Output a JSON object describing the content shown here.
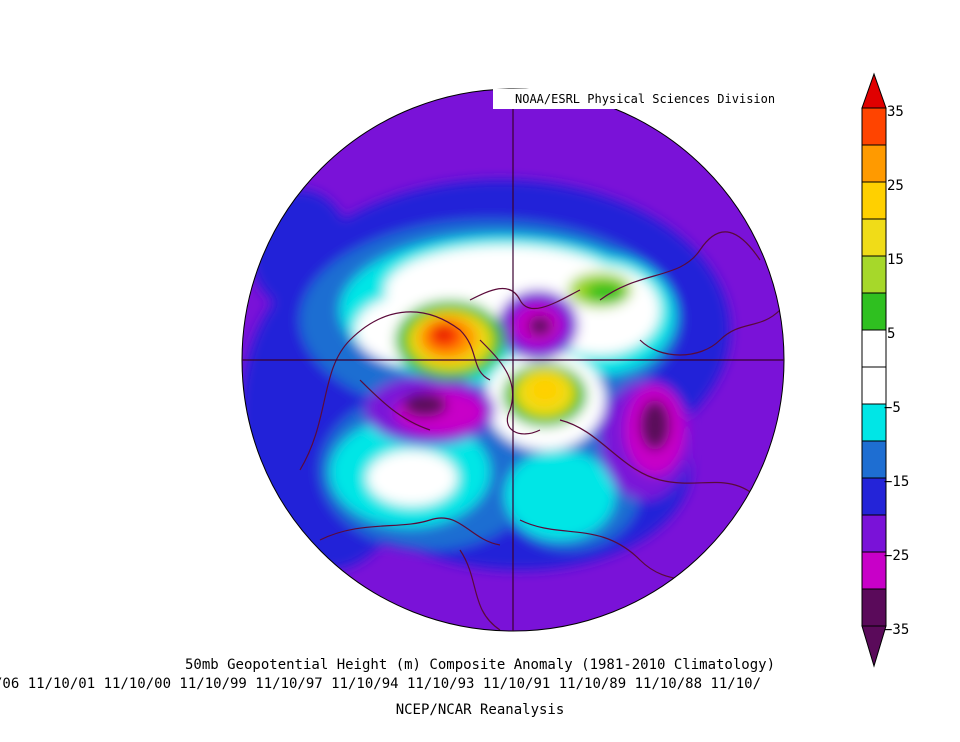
{
  "map": {
    "credit": "NOAA/ESRL Physical Sciences Division",
    "projection": "north polar stereographic",
    "colors": {
      "neg35": "#5a0a5a",
      "neg25": "#c800c8",
      "neg20": "#7a12d8",
      "neg15": "#2424d8",
      "neg10": "#1e6ed2",
      "neg5": "#00e6e6",
      "zero": "#ffffff",
      "pos5": "#2fc020",
      "pos10": "#a6d82a",
      "pos15": "#f0dc18",
      "pos20": "#ffd000",
      "pos25": "#ff9a00",
      "pos30": "#ff4400",
      "pos35": "#e00000",
      "coastline": "#5a0a3a"
    }
  },
  "caption": {
    "title": "50mb Geopotential Height (m) Composite Anomaly (1981-2010 Climatology)",
    "dates": "/06 11/10/01 11/10/00 11/10/99 11/10/97 11/10/94 11/10/93 11/10/91 11/10/89 11/10/88 11/10/",
    "source": "NCEP/NCAR Reanalysis"
  },
  "colorbar": {
    "labels": [
      "35",
      "25",
      "15",
      "5",
      "−5",
      "−15",
      "−25",
      "−35"
    ],
    "min": -35,
    "max": 35,
    "step": 5
  }
}
